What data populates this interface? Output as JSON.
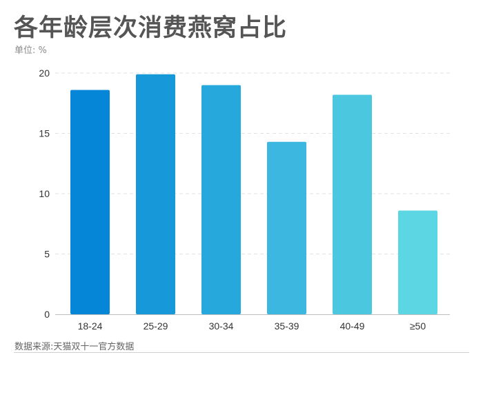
{
  "header": {
    "title": "各年龄层次消费燕窝占比",
    "unit": "单位: %"
  },
  "footer": {
    "source": "数据来源:天猫双十一官方数据"
  },
  "colors": {
    "bars": [
      "#0686d6",
      "#1798d8",
      "#27a8dc",
      "#3bb7e0",
      "#4bc7df",
      "#5dd6e3"
    ],
    "grid": "#e2e2e2",
    "axis": "#bdbdbd"
  },
  "chart_data": {
    "type": "bar",
    "title": "各年龄层次消费燕窝占比",
    "xlabel": "",
    "ylabel": "单位: %",
    "categories": [
      "18-24",
      "25-29",
      "30-34",
      "35-39",
      "40-49",
      "≥50"
    ],
    "values": [
      18.6,
      19.9,
      19.0,
      14.3,
      18.2,
      8.6
    ],
    "ylim": [
      0,
      20
    ],
    "yticks": [
      "0",
      "5",
      "10",
      "15",
      "20"
    ],
    "grid": true,
    "legend": "none"
  }
}
